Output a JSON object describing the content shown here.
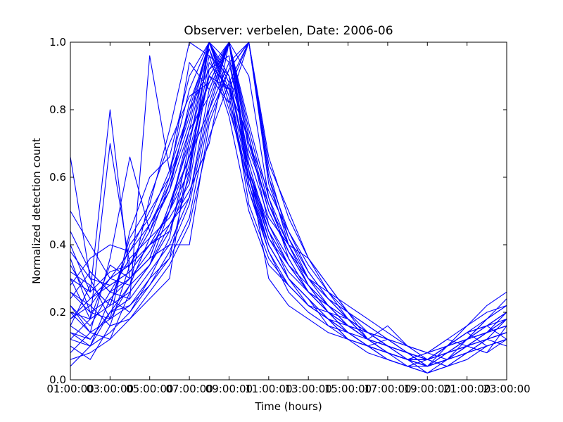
{
  "chart_data": {
    "type": "line",
    "title": "Observer: verbelen, Date: 2006-06",
    "xlabel": "Time (hours)",
    "ylabel": "Normalized detection count",
    "xlim": [
      1,
      23
    ],
    "ylim": [
      0,
      1
    ],
    "x": [
      1,
      2,
      3,
      4,
      5,
      6,
      7,
      8,
      9,
      10,
      11,
      12,
      13,
      14,
      15,
      16,
      17,
      18,
      19,
      20,
      21,
      22,
      23
    ],
    "xtick_values": [
      1,
      3,
      5,
      7,
      9,
      11,
      13,
      15,
      17,
      19,
      21,
      23
    ],
    "xtick_labels": [
      "01:00:00",
      "03:00:00",
      "05:00:00",
      "07:00:00",
      "09:00:00",
      "11:00:00",
      "13:00:00",
      "15:00:00",
      "17:00:00",
      "19:00:00",
      "21:00:00",
      "23:00:00"
    ],
    "ytick_values": [
      0.0,
      0.2,
      0.4,
      0.6,
      0.8,
      1.0
    ],
    "ytick_labels": [
      "0.0",
      "0.2",
      "0.4",
      "0.6",
      "0.8",
      "1.0"
    ],
    "grid": false,
    "legend": "none",
    "line_color": "#0000ff",
    "series": [
      {
        "values": [
          0.66,
          0.3,
          0.18,
          0.28,
          0.42,
          0.58,
          0.8,
          0.92,
          1.0,
          0.74,
          0.52,
          0.4,
          0.3,
          0.24,
          0.2,
          0.12,
          0.16,
          0.1,
          0.08,
          0.06,
          0.1,
          0.14,
          0.2
        ]
      },
      {
        "values": [
          0.4,
          0.26,
          0.8,
          0.3,
          0.36,
          0.52,
          0.7,
          1.0,
          0.88,
          0.62,
          0.46,
          0.34,
          0.26,
          0.22,
          0.16,
          0.14,
          0.1,
          0.08,
          0.04,
          0.1,
          0.12,
          0.16,
          0.12
        ]
      },
      {
        "values": [
          0.12,
          0.1,
          0.2,
          0.24,
          0.96,
          0.62,
          0.8,
          1.0,
          0.9,
          0.6,
          0.4,
          0.3,
          0.24,
          0.18,
          0.12,
          0.1,
          0.08,
          0.06,
          0.04,
          0.08,
          0.1,
          0.12,
          0.18
        ]
      },
      {
        "values": [
          0.3,
          0.18,
          0.7,
          0.34,
          0.44,
          0.6,
          0.94,
          0.86,
          1.0,
          0.58,
          0.38,
          0.26,
          0.2,
          0.16,
          0.14,
          0.1,
          0.12,
          0.08,
          0.06,
          0.1,
          0.16,
          0.22,
          0.26
        ]
      },
      {
        "values": [
          0.16,
          0.28,
          0.22,
          0.42,
          0.52,
          0.74,
          1.0,
          0.96,
          0.78,
          0.5,
          0.34,
          0.28,
          0.22,
          0.18,
          0.16,
          0.12,
          0.08,
          0.06,
          0.08,
          0.12,
          0.1,
          0.14,
          0.16
        ]
      },
      {
        "values": [
          0.5,
          0.4,
          0.3,
          0.34,
          0.4,
          0.5,
          0.62,
          1.0,
          0.86,
          0.72,
          0.46,
          0.36,
          0.26,
          0.2,
          0.18,
          0.14,
          0.12,
          0.1,
          0.06,
          0.04,
          0.08,
          0.12,
          0.14
        ]
      },
      {
        "values": [
          0.2,
          0.14,
          0.36,
          0.66,
          0.44,
          0.56,
          0.82,
          0.98,
          0.8,
          0.6,
          0.44,
          0.3,
          0.24,
          0.16,
          0.12,
          0.1,
          0.08,
          0.04,
          0.02,
          0.06,
          0.12,
          0.18,
          0.22
        ]
      },
      {
        "values": [
          0.24,
          0.32,
          0.26,
          0.3,
          0.36,
          0.4,
          0.4,
          0.76,
          0.92,
          1.0,
          0.62,
          0.42,
          0.3,
          0.24,
          0.18,
          0.14,
          0.1,
          0.08,
          0.06,
          0.1,
          0.14,
          0.1,
          0.12
        ]
      },
      {
        "values": [
          0.26,
          0.22,
          0.3,
          0.28,
          0.34,
          0.46,
          0.54,
          0.82,
          1.0,
          0.68,
          0.52,
          0.38,
          0.28,
          0.22,
          0.16,
          0.12,
          0.08,
          0.06,
          0.04,
          0.06,
          0.08,
          0.12,
          0.14
        ]
      },
      {
        "values": [
          0.14,
          0.1,
          0.24,
          0.2,
          0.3,
          0.36,
          0.62,
          0.9,
          0.82,
          1.0,
          0.6,
          0.4,
          0.28,
          0.2,
          0.14,
          0.1,
          0.06,
          0.04,
          0.02,
          0.04,
          0.08,
          0.1,
          0.12
        ]
      },
      {
        "values": [
          0.36,
          0.2,
          0.18,
          0.44,
          0.6,
          0.66,
          0.9,
          1.0,
          0.84,
          0.56,
          0.4,
          0.3,
          0.22,
          0.18,
          0.12,
          0.08,
          0.06,
          0.04,
          0.06,
          0.08,
          0.12,
          0.16,
          0.18
        ]
      },
      {
        "values": [
          0.22,
          0.14,
          0.12,
          0.26,
          0.34,
          0.5,
          0.72,
          0.88,
          1.0,
          0.62,
          0.3,
          0.22,
          0.18,
          0.14,
          0.12,
          0.1,
          0.06,
          0.04,
          0.04,
          0.06,
          0.1,
          0.08,
          0.16
        ]
      },
      {
        "values": [
          0.18,
          0.24,
          0.28,
          0.32,
          0.4,
          0.44,
          0.6,
          1.0,
          0.94,
          0.66,
          0.48,
          0.4,
          0.36,
          0.28,
          0.2,
          0.16,
          0.12,
          0.08,
          0.06,
          0.1,
          0.14,
          0.18,
          0.24
        ]
      },
      {
        "values": [
          0.28,
          0.36,
          0.4,
          0.38,
          0.46,
          0.56,
          0.74,
          0.84,
          1.0,
          0.7,
          0.56,
          0.44,
          0.34,
          0.26,
          0.22,
          0.18,
          0.14,
          0.1,
          0.08,
          0.12,
          0.16,
          0.2,
          0.22
        ]
      },
      {
        "values": [
          0.1,
          0.06,
          0.16,
          0.18,
          0.24,
          0.3,
          0.68,
          0.9,
          0.86,
          1.0,
          0.64,
          0.5,
          0.36,
          0.26,
          0.18,
          0.12,
          0.1,
          0.06,
          0.04,
          0.06,
          0.08,
          0.1,
          0.12
        ]
      },
      {
        "values": [
          0.32,
          0.28,
          0.22,
          0.4,
          0.48,
          0.62,
          0.86,
          1.0,
          0.88,
          0.52,
          0.36,
          0.28,
          0.22,
          0.2,
          0.14,
          0.1,
          0.08,
          0.06,
          0.08,
          0.1,
          0.12,
          0.14,
          0.18
        ]
      },
      {
        "values": [
          0.2,
          0.18,
          0.34,
          0.3,
          0.38,
          0.5,
          0.66,
          0.8,
          1.0,
          0.76,
          0.54,
          0.36,
          0.26,
          0.2,
          0.16,
          0.12,
          0.1,
          0.08,
          0.06,
          0.08,
          0.12,
          0.16,
          0.2
        ]
      },
      {
        "values": [
          0.44,
          0.32,
          0.26,
          0.36,
          0.42,
          0.48,
          0.58,
          0.92,
          0.96,
          0.62,
          0.42,
          0.32,
          0.26,
          0.22,
          0.16,
          0.14,
          0.12,
          0.08,
          0.04,
          0.06,
          0.1,
          0.14,
          0.16
        ]
      },
      {
        "values": [
          0.16,
          0.12,
          0.2,
          0.28,
          0.54,
          0.7,
          0.84,
          0.88,
          1.0,
          0.58,
          0.4,
          0.3,
          0.24,
          0.18,
          0.14,
          0.12,
          0.08,
          0.06,
          0.04,
          0.06,
          0.08,
          0.12,
          0.14
        ]
      },
      {
        "values": [
          0.08,
          0.14,
          0.18,
          0.22,
          0.3,
          0.42,
          0.7,
          0.96,
          0.9,
          0.7,
          0.5,
          0.38,
          0.28,
          0.22,
          0.16,
          0.12,
          0.1,
          0.08,
          0.04,
          0.06,
          0.1,
          0.12,
          0.1
        ]
      },
      {
        "values": [
          0.3,
          0.26,
          0.32,
          0.34,
          0.46,
          0.58,
          0.76,
          1.0,
          0.82,
          0.56,
          0.38,
          0.28,
          0.22,
          0.18,
          0.14,
          0.1,
          0.08,
          0.06,
          0.06,
          0.08,
          0.1,
          0.14,
          0.18
        ]
      },
      {
        "values": [
          0.04,
          0.1,
          0.14,
          0.2,
          0.28,
          0.38,
          0.52,
          0.8,
          0.94,
          1.0,
          0.6,
          0.44,
          0.32,
          0.24,
          0.18,
          0.12,
          0.08,
          0.06,
          0.04,
          0.06,
          0.1,
          0.08,
          0.12
        ]
      },
      {
        "values": [
          0.26,
          0.2,
          0.24,
          0.3,
          0.36,
          0.52,
          0.66,
          0.9,
          1.0,
          0.64,
          0.44,
          0.34,
          0.26,
          0.22,
          0.18,
          0.14,
          0.1,
          0.08,
          0.06,
          0.08,
          0.12,
          0.18,
          0.22
        ]
      },
      {
        "values": [
          0.38,
          0.3,
          0.28,
          0.32,
          0.4,
          0.46,
          0.56,
          0.7,
          1.0,
          0.9,
          0.54,
          0.4,
          0.3,
          0.26,
          0.2,
          0.16,
          0.12,
          0.1,
          0.08,
          0.1,
          0.14,
          0.16,
          0.2
        ]
      },
      {
        "values": [
          0.12,
          0.18,
          0.22,
          0.26,
          0.34,
          0.44,
          0.64,
          0.94,
          0.86,
          0.6,
          0.42,
          0.34,
          0.28,
          0.2,
          0.16,
          0.12,
          0.08,
          0.06,
          0.06,
          0.08,
          0.1,
          0.12,
          0.14
        ]
      },
      {
        "values": [
          0.06,
          0.08,
          0.12,
          0.18,
          0.26,
          0.34,
          0.46,
          0.72,
          0.88,
          1.0,
          0.66,
          0.48,
          0.36,
          0.28,
          0.2,
          0.14,
          0.1,
          0.06,
          0.02,
          0.04,
          0.06,
          0.1,
          0.12
        ]
      },
      {
        "values": [
          0.34,
          0.24,
          0.3,
          0.38,
          0.5,
          0.6,
          0.78,
          1.0,
          0.9,
          0.62,
          0.44,
          0.34,
          0.26,
          0.2,
          0.16,
          0.12,
          0.1,
          0.08,
          0.06,
          0.1,
          0.14,
          0.16,
          0.2
        ]
      },
      {
        "values": [
          0.22,
          0.16,
          0.26,
          0.24,
          0.32,
          0.4,
          0.54,
          0.86,
          1.0,
          0.72,
          0.5,
          0.38,
          0.3,
          0.22,
          0.18,
          0.12,
          0.08,
          0.06,
          0.04,
          0.08,
          0.12,
          0.14,
          0.16
        ]
      },
      {
        "values": [
          0.18,
          0.22,
          0.16,
          0.34,
          0.4,
          0.5,
          0.74,
          0.98,
          0.84,
          0.58,
          0.4,
          0.3,
          0.24,
          0.18,
          0.14,
          0.1,
          0.08,
          0.06,
          0.06,
          0.1,
          0.12,
          0.14,
          0.18
        ]
      },
      {
        "values": [
          0.14,
          0.12,
          0.2,
          0.22,
          0.28,
          0.36,
          0.48,
          0.78,
          0.92,
          1.0,
          0.58,
          0.42,
          0.32,
          0.24,
          0.18,
          0.14,
          0.1,
          0.08,
          0.06,
          0.08,
          0.1,
          0.12,
          0.14
        ]
      }
    ]
  }
}
